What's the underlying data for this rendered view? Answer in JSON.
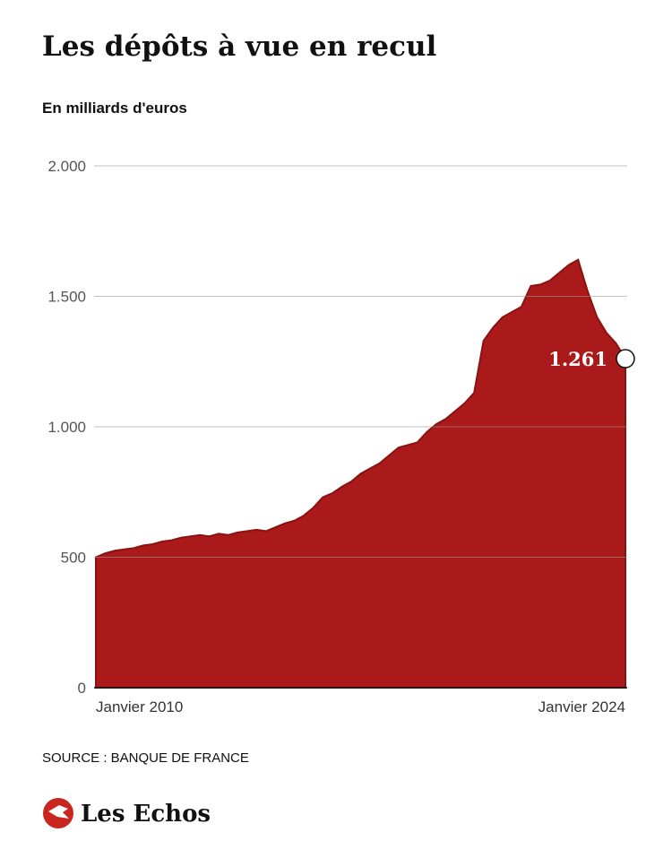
{
  "chart_data": {
    "type": "area",
    "title": "Les dépôts à vue en recul",
    "subtitle": "En milliards d'euros",
    "source": "SOURCE : BANQUE DE FRANCE",
    "brand": "Les Echos",
    "categories": [
      "Janvier 2010",
      null,
      null,
      null,
      null,
      null,
      null,
      null,
      null,
      null,
      null,
      null,
      null,
      null,
      null,
      null,
      null,
      null,
      null,
      null,
      null,
      null,
      null,
      null,
      null,
      null,
      null,
      null,
      null,
      null,
      null,
      null,
      null,
      null,
      null,
      null,
      null,
      null,
      null,
      null,
      null,
      null,
      null,
      null,
      null,
      null,
      null,
      null,
      null,
      null,
      null,
      null,
      null,
      null,
      null,
      null,
      "Janvier 2024"
    ],
    "series": [
      {
        "name": "Dépôts à vue",
        "color": "#ab1a1a",
        "values": [
          500,
          515,
          525,
          530,
          535,
          545,
          550,
          560,
          565,
          575,
          580,
          585,
          580,
          590,
          585,
          595,
          600,
          605,
          600,
          615,
          630,
          640,
          660,
          690,
          730,
          745,
          770,
          790,
          820,
          840,
          860,
          890,
          920,
          930,
          940,
          980,
          1010,
          1030,
          1060,
          1090,
          1130,
          1330,
          1380,
          1420,
          1440,
          1460,
          1540,
          1545,
          1560,
          1590,
          1620,
          1640,
          1520,
          1420,
          1360,
          1320,
          1261
        ],
        "value_labels": [
          null,
          null,
          null,
          null,
          null,
          null,
          null,
          null,
          null,
          null,
          null,
          null,
          null,
          null,
          null,
          null,
          null,
          null,
          null,
          null,
          null,
          null,
          null,
          null,
          null,
          null,
          null,
          null,
          null,
          null,
          null,
          null,
          null,
          null,
          null,
          null,
          null,
          null,
          null,
          null,
          null,
          null,
          null,
          null,
          null,
          null,
          null,
          null,
          null,
          null,
          null,
          null,
          null,
          null,
          null,
          null,
          "1.261"
        ]
      }
    ],
    "ylim": [
      0,
      2000
    ],
    "yticks": [
      0,
      500,
      {
        "value": 1000,
        "label": "1.000"
      },
      {
        "value": 1500,
        "label": "1.500"
      },
      {
        "value": 2000,
        "label": "2.000"
      }
    ],
    "grid": true
  }
}
